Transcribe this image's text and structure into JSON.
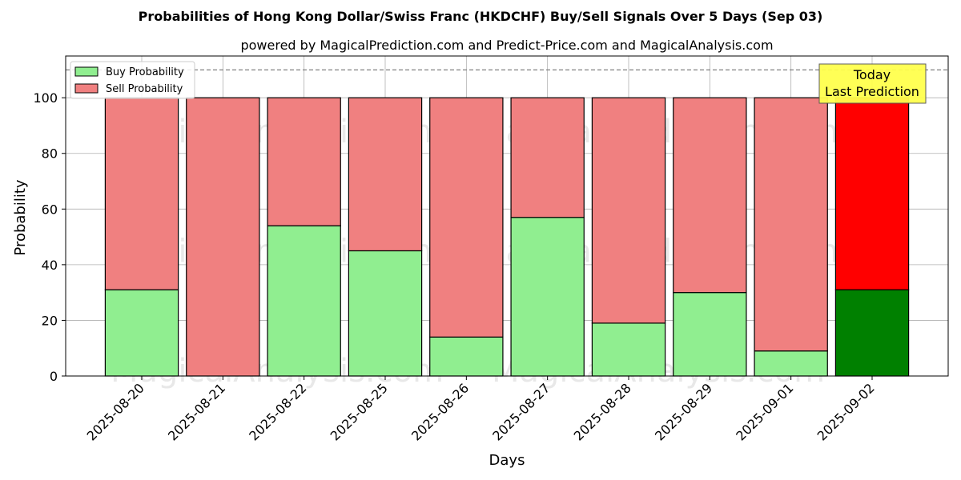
{
  "chart_data": {
    "type": "bar",
    "stacked": true,
    "title": "Probabilities of Hong Kong Dollar/Swiss Franc (HKDCHF) Buy/Sell Signals Over 5 Days (Sep 03)",
    "subtitle": "powered by MagicalPrediction.com and Predict-Price.com and MagicalAnalysis.com",
    "xlabel": "Days",
    "ylabel": "Probability",
    "ylim": [
      0,
      115
    ],
    "yticks": [
      0,
      20,
      40,
      60,
      80,
      100
    ],
    "grid": true,
    "legend_position": "top-left",
    "reference_line": 110,
    "categories": [
      "2025-08-20",
      "2025-08-21",
      "2025-08-22",
      "2025-08-25",
      "2025-08-26",
      "2025-08-27",
      "2025-08-28",
      "2025-08-29",
      "2025-09-01",
      "2025-09-02"
    ],
    "series": [
      {
        "name": "Buy Probability",
        "values": [
          31,
          0,
          54,
          45,
          14,
          57,
          19,
          30,
          9,
          31
        ],
        "color": "#90ee90",
        "highlight_color": "#008000"
      },
      {
        "name": "Sell Probability",
        "values": [
          69,
          100,
          46,
          55,
          86,
          43,
          81,
          70,
          91,
          69
        ],
        "color": "#f08080",
        "highlight_color": "#ff0000"
      }
    ],
    "highlight_index": 9,
    "annotation": {
      "lines": [
        "Today",
        "Last Prediction"
      ],
      "color": "#ffff4d"
    },
    "watermarks": [
      "MagicalAnalysis.com",
      "MagicalPrediction.com"
    ]
  }
}
